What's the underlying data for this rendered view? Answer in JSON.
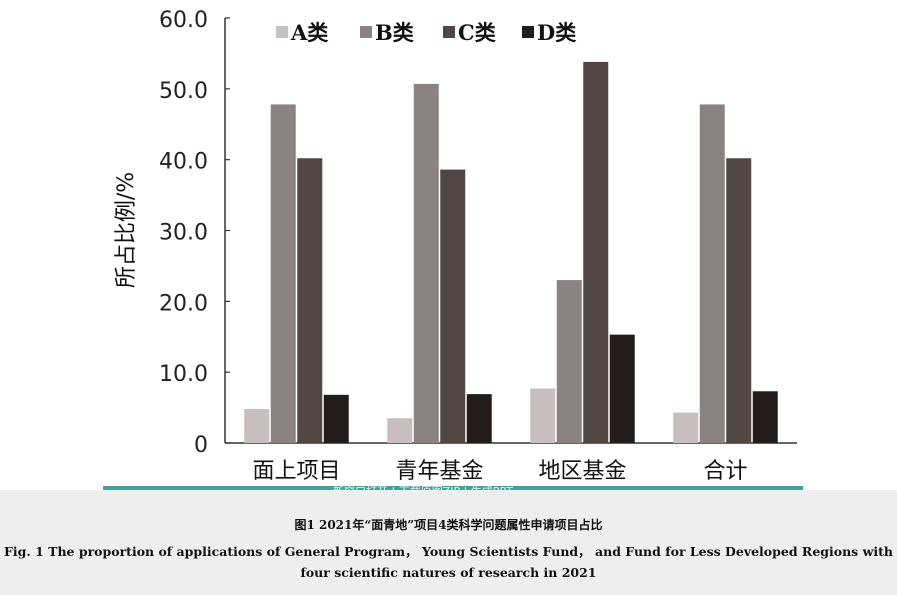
{
  "chart_data": {
    "type": "bar",
    "categories": [
      "面上项目",
      "青年基金",
      "地区基金",
      "合计"
    ],
    "series": [
      {
        "name": "A类",
        "color": "#c7bfbd",
        "values": [
          4.8,
          3.5,
          7.7,
          4.3
        ]
      },
      {
        "name": "B类",
        "color": "#8a8381",
        "values": [
          47.8,
          50.7,
          23.0,
          47.8
        ]
      },
      {
        "name": "C类",
        "color": "#504745",
        "values": [
          40.2,
          38.6,
          53.8,
          40.2
        ]
      },
      {
        "name": "D类",
        "color": "#221d1b",
        "values": [
          6.8,
          6.9,
          15.3,
          7.3
        ]
      }
    ],
    "ylabel": "所占比例/%",
    "xlabel": "",
    "ylim": [
      0,
      60
    ],
    "yticks": [
      "0",
      "10.0",
      "20.0",
      "30.0",
      "40.0",
      "50.0",
      "60.0"
    ],
    "yticks_values": [
      0,
      10,
      20,
      30,
      40,
      50,
      60
    ],
    "legend_position": "top"
  },
  "banner_text": "新窗口打开 | 下载原图ZIP | 生成PPT",
  "caption": {
    "cn": "图1 2021年“面青地”项目4类科学问题属性申请项目占比",
    "en": "Fig. 1 The proportion of applications of General Program， Young Scientists Fund， and Fund for Less Developed Regions with four scientific natures of research in 2021"
  }
}
